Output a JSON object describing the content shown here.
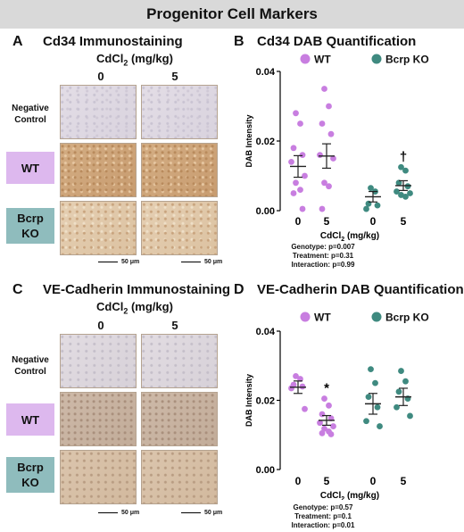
{
  "banner_title": "Progenitor Cell Markers",
  "panels": {
    "A": {
      "letter": "A",
      "title": "Cd34 Immunostaining",
      "cd_label": "CdCl",
      "cd_sub": "2",
      "cd_units": " (mg/kg)",
      "columns": [
        "0",
        "5"
      ],
      "rows": [
        {
          "line1": "Negative",
          "line2": "Control"
        },
        {
          "line1": "WT",
          "line2": ""
        },
        {
          "line1": "Bcrp",
          "line2": "KO"
        }
      ],
      "scale_label": "50 μm"
    },
    "C": {
      "letter": "C",
      "title": "VE-Cadherin Immunostaining",
      "cd_label": "CdCl",
      "cd_sub": "2",
      "cd_units": " (mg/kg)",
      "columns": [
        "0",
        "5"
      ],
      "rows": [
        {
          "line1": "Negative",
          "line2": "Control"
        },
        {
          "line1": "WT",
          "line2": ""
        },
        {
          "line1": "Bcrp",
          "line2": "KO"
        }
      ],
      "scale_label": "50 μm"
    },
    "B": {
      "letter": "B",
      "title": "Cd34 DAB Quantification",
      "stats": [
        "Genotype: p=0.007",
        "Treatment: p=0.31",
        "Interaction: p=0.99"
      ]
    },
    "D": {
      "letter": "D",
      "title": "VE-Cadherin DAB Quantification",
      "stats": [
        "Genotype: p=0.57",
        "Treatment: p=0.1",
        "Interaction: p=0.01"
      ]
    }
  },
  "colors": {
    "wt": "#c87ee0",
    "ko": "#3f8a80",
    "wt_box": "#ddb8ee",
    "ko_box": "#8fbcbd",
    "banner": "#d9d9d9"
  },
  "chart_data": [
    {
      "type": "scatter",
      "title": "Cd34 DAB Quantification",
      "ylabel": "DAB Intensity",
      "xlabel": "CdCl2 (mg/kg)",
      "ylim": [
        0,
        0.04
      ],
      "yticks": [
        "0.00",
        "0.02",
        "0.04"
      ],
      "legend": [
        "WT",
        "Bcrp KO"
      ],
      "legend_position": "top",
      "groups": [
        {
          "series": "WT",
          "dose": "0",
          "mean": 0.0127,
          "sem": 0.0031,
          "points": [
            0.028,
            0.025,
            0.018,
            0.016,
            0.014,
            0.01,
            0.008,
            0.006,
            0.005,
            0.0005
          ]
        },
        {
          "series": "WT",
          "dose": "5",
          "mean": 0.0157,
          "sem": 0.0035,
          "points": [
            0.035,
            0.03,
            0.025,
            0.022,
            0.016,
            0.015,
            0.008,
            0.007,
            0.0005
          ]
        },
        {
          "series": "Bcrp KO",
          "dose": "0",
          "mean": 0.004,
          "sem": 0.0015,
          "points": [
            0.0065,
            0.0055,
            0.002,
            0.0015,
            0.0005
          ]
        },
        {
          "series": "Bcrp KO",
          "dose": "5",
          "mean": 0.0072,
          "sem": 0.0014,
          "points": [
            0.0125,
            0.0115,
            0.008,
            0.007,
            0.0055,
            0.005,
            0.0045,
            0.004
          ]
        }
      ],
      "annotation": {
        "text": "†",
        "group": 3
      }
    },
    {
      "type": "scatter",
      "title": "VE-Cadherin DAB Quantification",
      "ylabel": "DAB Intensity",
      "xlabel": "CdCl2 (mg/kg)",
      "ylim": [
        0,
        0.04
      ],
      "yticks": [
        "0.00",
        "0.02",
        "0.04"
      ],
      "legend": [
        "WT",
        "Bcrp KO"
      ],
      "legend_position": "top",
      "groups": [
        {
          "series": "WT",
          "dose": "0",
          "mean": 0.0238,
          "sem": 0.0018,
          "points": [
            0.027,
            0.0262,
            0.0245,
            0.024,
            0.0235,
            0.0175
          ]
        },
        {
          "series": "WT",
          "dose": "5",
          "mean": 0.0142,
          "sem": 0.0014,
          "points": [
            0.0205,
            0.0185,
            0.016,
            0.0148,
            0.0135,
            0.0125,
            0.0118,
            0.011,
            0.0105,
            0.0102
          ]
        },
        {
          "series": "Bcrp KO",
          "dose": "0",
          "mean": 0.019,
          "sem": 0.003,
          "points": [
            0.029,
            0.025,
            0.021,
            0.018,
            0.014,
            0.0125
          ]
        },
        {
          "series": "Bcrp KO",
          "dose": "5",
          "mean": 0.021,
          "sem": 0.0025,
          "points": [
            0.0285,
            0.0255,
            0.0225,
            0.0205,
            0.018,
            0.0155
          ]
        }
      ],
      "annotation": {
        "text": "*",
        "group": 1
      }
    }
  ]
}
